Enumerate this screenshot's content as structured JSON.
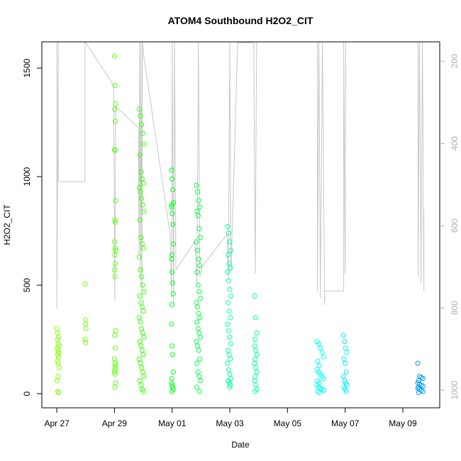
{
  "chart_data": {
    "type": "scatter",
    "title": "ATOM4 Southbound H2O2_CIT",
    "x_label": "Date",
    "y_label": "H2O2_CIT",
    "xlim": [
      -0.52,
      13.28
    ],
    "xticks": [
      {
        "value": 0,
        "label": "Apr 27"
      },
      {
        "value": 2,
        "label": "Apr 29"
      },
      {
        "value": 4,
        "label": "May 01"
      },
      {
        "value": 6,
        "label": "May 03"
      },
      {
        "value": 8,
        "label": "May 05"
      },
      {
        "value": 10,
        "label": "May 07"
      },
      {
        "value": 12,
        "label": "May 09"
      }
    ],
    "ylim": [
      -65,
      1621
    ],
    "yticks": [
      0,
      500,
      1000,
      1500
    ],
    "y2lim": [
      1043,
      153
    ],
    "y2ticks": [
      200,
      400,
      600,
      800,
      1000
    ],
    "y2_color": "#b0b0b0",
    "series": [
      {
        "type": "line",
        "axis": "y2",
        "color": "#c8c8c8",
        "x": [
          0,
          0,
          0.05,
          0.05,
          0.98,
          0.98,
          1.97,
          2.01,
          2.04,
          2.83,
          2.85,
          2.87,
          2.9,
          2.92,
          2.95,
          2.97,
          3.02,
          3.93,
          3.98,
          4.0,
          4.05,
          4.08,
          4.13,
          4.79,
          4.86,
          4.91,
          4.96,
          5.04,
          5.9,
          5.95,
          6.0,
          6.04,
          6.27,
          6.83,
          6.88,
          6.93,
          9.04,
          9.04,
          9.09,
          9.14,
          9.21,
          9.29,
          9.29,
          9.95,
          9.95,
          10.0,
          10.02,
          12.53,
          12.53,
          12.58,
          12.63,
          12.68,
          12.73,
          12.73
        ],
        "values": [
          153,
          803,
          153,
          493,
          493,
          153,
          259,
          783,
          310,
          362,
          672,
          153,
          741,
          153,
          776,
          153,
          190,
          621,
          776,
          153,
          793,
          153,
          707,
          638,
          741,
          153,
          724,
          700,
          621,
          733,
          153,
          716,
          155,
          155,
          716,
          153,
          153,
          759,
          153,
          776,
          153,
          793,
          759,
          759,
          153,
          716,
          153,
          153,
          724,
          153,
          741,
          153,
          759,
          560
        ]
      },
      {
        "color": "#80ff00",
        "x": [
          0,
          0.03,
          0.06,
          0.02,
          0.05,
          0.08,
          0.01,
          0.04,
          0.07,
          0.03,
          0.06,
          0.02,
          0.05,
          0.08,
          0.04,
          0.01,
          0.03,
          0.06
        ],
        "values": [
          300,
          280,
          260,
          250,
          230,
          220,
          210,
          200,
          190,
          180,
          170,
          150,
          140,
          120,
          80,
          60,
          10,
          5
        ]
      },
      {
        "color": "#70ff00",
        "x": [
          0.98,
          1.0,
          0.99,
          1.01,
          0.98,
          1.0
        ],
        "values": [
          505,
          340,
          320,
          300,
          250,
          235
        ]
      },
      {
        "color": "#55ff00",
        "x": [
          2.0,
          2.02,
          2.04,
          2.01,
          2.03,
          2.0,
          2.02,
          2.04,
          2.01,
          2.03,
          2.0,
          2.02,
          2.04,
          2.01,
          2.03,
          2.0,
          2.02,
          2.04,
          2.01,
          2.03,
          2.0,
          2.02,
          2.04,
          2.01,
          2.03,
          2.0,
          2.02,
          2.04,
          2.01
        ],
        "values": [
          1555,
          1420,
          1335,
          1310,
          1255,
          1125,
          1120,
          890,
          800,
          790,
          700,
          670,
          660,
          640,
          600,
          570,
          540,
          290,
          270,
          210,
          160,
          140,
          130,
          120,
          110,
          100,
          90,
          50,
          30
        ]
      },
      {
        "color": "#33ff00",
        "x": [
          2.86,
          2.9,
          2.94,
          2.98,
          3.02,
          2.88,
          2.92,
          2.96,
          3.0,
          2.86,
          2.9,
          2.94,
          2.98,
          3.02,
          2.88,
          2.92,
          2.96,
          3.0,
          2.86,
          2.9,
          2.94,
          2.98,
          3.02,
          2.88,
          2.92,
          2.96,
          3.0,
          2.86,
          2.9,
          2.94,
          2.98,
          3.02,
          2.88,
          2.92,
          2.96,
          3.0,
          2.86,
          2.9,
          2.94,
          2.98,
          3.02,
          2.88,
          2.92,
          2.96,
          3.0
        ],
        "values": [
          1310,
          1280,
          1240,
          1200,
          1150,
          1100,
          1020,
          990,
          970,
          950,
          930,
          900,
          870,
          840,
          800,
          720,
          690,
          670,
          630,
          570,
          540,
          500,
          470,
          450,
          420,
          400,
          380,
          350,
          330,
          300,
          280,
          260,
          240,
          220,
          200,
          180,
          160,
          140,
          120,
          100,
          80,
          60,
          40,
          20,
          10
        ]
      },
      {
        "color": "#00ff20",
        "x": [
          3.98,
          4.0,
          4.02,
          4.04,
          3.99,
          3.98,
          4.0,
          4.02,
          4.04,
          3.99,
          3.98,
          4.0,
          4.02,
          4.04,
          3.99,
          3.98,
          4.0,
          4.02,
          4.04,
          3.99,
          3.98,
          4.0,
          4.02,
          4.04,
          3.99
        ],
        "values": [
          1030,
          990,
          940,
          880,
          870,
          860,
          830,
          780,
          690,
          640,
          620,
          560,
          510,
          460,
          410,
          320,
          220,
          180,
          100,
          70,
          50,
          40,
          30,
          20,
          10
        ]
      },
      {
        "color": "#00ff40",
        "x": [
          4.84,
          4.88,
          4.92,
          4.96,
          4.86,
          4.9,
          4.94,
          4.98,
          4.84,
          4.88,
          4.92,
          4.96,
          4.86,
          4.9,
          4.94,
          4.98,
          4.84,
          4.88,
          4.92,
          4.96,
          4.86,
          4.9,
          4.94,
          4.98,
          4.84,
          4.88,
          4.92,
          4.96,
          4.86,
          4.9,
          4.94,
          4.98,
          4.85,
          4.95
        ],
        "values": [
          960,
          930,
          890,
          860,
          840,
          820,
          760,
          720,
          700,
          660,
          620,
          590,
          560,
          500,
          470,
          440,
          420,
          400,
          370,
          350,
          330,
          300,
          280,
          260,
          240,
          220,
          200,
          160,
          140,
          100,
          80,
          60,
          30,
          10
        ]
      },
      {
        "color": "#00ff99",
        "x": [
          5.92,
          5.96,
          6.0,
          6.04,
          5.94,
          5.98,
          6.02,
          5.92,
          5.96,
          6.0,
          6.04,
          5.94,
          5.98,
          6.02,
          5.92,
          5.96,
          6.0,
          6.04,
          5.94,
          5.98,
          6.02,
          5.92,
          5.96,
          6.0,
          6.04,
          5.94,
          5.98,
          6.02,
          6.0
        ],
        "values": [
          770,
          740,
          700,
          660,
          640,
          600,
          580,
          560,
          520,
          480,
          450,
          420,
          380,
          350,
          320,
          290,
          260,
          230,
          200,
          180,
          160,
          140,
          110,
          90,
          70,
          60,
          50,
          40,
          30
        ]
      },
      {
        "color": "#00ffaa",
        "x": [
          6.86,
          6.9,
          6.94,
          6.88,
          6.86,
          6.9,
          6.94,
          6.88,
          6.86,
          6.9,
          6.94,
          6.88,
          6.86,
          6.9,
          6.94,
          6.88
        ],
        "values": [
          450,
          350,
          280,
          250,
          220,
          200,
          180,
          160,
          140,
          120,
          100,
          80,
          60,
          40,
          20,
          10
        ]
      },
      {
        "color": "#00ffee",
        "x": [
          9.02,
          9.08,
          9.14,
          9.2,
          9.26,
          9.05,
          9.11,
          9.02,
          9.08,
          9.14,
          9.2,
          9.26,
          9.05,
          9.11,
          9.02,
          9.08,
          9.14,
          9.2,
          9.26,
          9.05,
          9.11
        ],
        "values": [
          240,
          230,
          210,
          190,
          170,
          150,
          130,
          110,
          100,
          90,
          80,
          70,
          60,
          50,
          40,
          30,
          25,
          20,
          15,
          10,
          5
        ]
      },
      {
        "color": "#00f0ff",
        "x": [
          9.94,
          9.98,
          10.02,
          10.06,
          9.96,
          10.0,
          10.04,
          9.94,
          9.98,
          10.02,
          10.06,
          9.96,
          10.0,
          10.04
        ],
        "values": [
          270,
          240,
          210,
          190,
          160,
          140,
          100,
          80,
          60,
          50,
          40,
          30,
          20,
          10
        ]
      },
      {
        "color": "#0099ff",
        "x": [
          12.52,
          12.58,
          12.64,
          12.7,
          12.55,
          12.52,
          12.58,
          12.64,
          12.7,
          12.55,
          12.52,
          12.58,
          12.64,
          12.7,
          12.55
        ],
        "values": [
          140,
          80,
          75,
          70,
          60,
          50,
          45,
          40,
          35,
          30,
          25,
          20,
          15,
          10,
          5
        ]
      }
    ]
  }
}
